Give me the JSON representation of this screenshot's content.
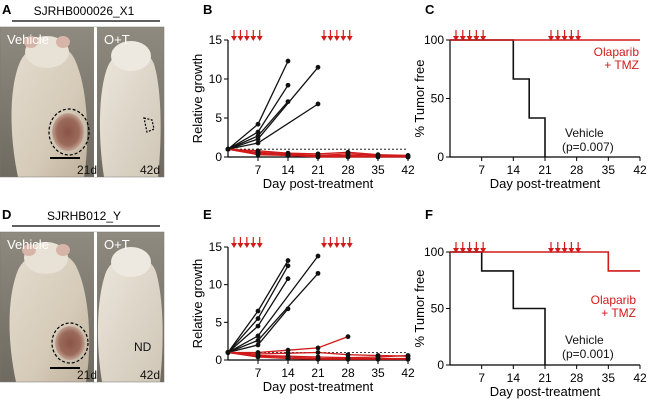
{
  "colors": {
    "vehicle": "#111111",
    "treatment": "#d11a1a",
    "dots": "#111111"
  },
  "dose_icon": "down-arrow-dose-icon",
  "panels": {
    "A": {
      "letter": "A",
      "model": "SJRHB000026_X1",
      "left_label": "Vehicle",
      "right_label": "O+T",
      "left_day": "21d",
      "right_day": "42d",
      "nd": ""
    },
    "D": {
      "letter": "D",
      "model": "SJRHB012_Y",
      "left_label": "Vehicle",
      "right_label": "O+T",
      "left_day": "21d",
      "right_day": "42d",
      "nd": "ND"
    },
    "B": {
      "letter": "B"
    },
    "C": {
      "letter": "C"
    },
    "E": {
      "letter": "E"
    },
    "F": {
      "letter": "F"
    }
  },
  "chart_data": [
    {
      "panel": "B",
      "type": "line",
      "title": "",
      "xlabel": "Day post-treatment",
      "ylabel": "Relative growth",
      "xlim": [
        0,
        42
      ],
      "ylim": [
        0,
        15
      ],
      "xticks": [
        7,
        14,
        21,
        28,
        35,
        42
      ],
      "yticks": [
        0,
        5,
        10,
        15
      ],
      "reference_line": 1,
      "dosing_days": [
        0,
        1.5,
        3,
        4.5,
        6,
        21,
        22.5,
        24,
        25.5,
        27
      ],
      "series": [
        {
          "name": "Vehicle",
          "group": "vehicle",
          "x": [
            0,
            7,
            14
          ],
          "y": [
            1,
            4.2,
            12.3
          ]
        },
        {
          "name": "Vehicle",
          "group": "vehicle",
          "x": [
            0,
            7,
            14
          ],
          "y": [
            1,
            3.2,
            9.2
          ]
        },
        {
          "name": "Vehicle",
          "group": "vehicle",
          "x": [
            0,
            7,
            14
          ],
          "y": [
            1,
            2.7,
            7.1
          ]
        },
        {
          "name": "Vehicle",
          "group": "vehicle",
          "x": [
            0,
            7,
            21
          ],
          "y": [
            1,
            2.3,
            11.5
          ]
        },
        {
          "name": "Vehicle",
          "group": "vehicle",
          "x": [
            0,
            7,
            21
          ],
          "y": [
            1,
            1.8,
            6.8
          ]
        },
        {
          "name": "Olaparib + TMZ",
          "group": "treatment",
          "x": [
            0,
            7,
            14,
            21,
            28,
            35,
            42
          ],
          "y": [
            1,
            0.8,
            0.5,
            0.4,
            0.6,
            0.3,
            0.2
          ]
        },
        {
          "name": "Olaparib + TMZ",
          "group": "treatment",
          "x": [
            0,
            7,
            14,
            21,
            28,
            35,
            42
          ],
          "y": [
            1,
            0.6,
            0.4,
            0.2,
            0.4,
            0.2,
            0.1
          ]
        },
        {
          "name": "Olaparib + TMZ",
          "group": "treatment",
          "x": [
            0,
            7,
            14,
            21,
            28,
            35,
            42
          ],
          "y": [
            1,
            0.5,
            0.3,
            0.1,
            0.2,
            0.1,
            0.1
          ]
        },
        {
          "name": "Olaparib + TMZ",
          "group": "treatment",
          "x": [
            0,
            7,
            14,
            21,
            28,
            35,
            42
          ],
          "y": [
            1,
            0.4,
            0.2,
            0.1,
            0.1,
            0.1,
            0.0
          ]
        },
        {
          "name": "Olaparib + TMZ",
          "group": "treatment",
          "x": [
            0,
            7,
            14,
            21,
            28,
            35,
            42
          ],
          "y": [
            1,
            0.3,
            0.2,
            0.0,
            0.0,
            0.0,
            0.0
          ]
        }
      ]
    },
    {
      "panel": "C",
      "type": "line",
      "step": true,
      "title": "",
      "xlabel": "Day post-treatment",
      "ylabel": "% Tumor free",
      "xlim": [
        0,
        42
      ],
      "ylim": [
        0,
        100
      ],
      "xticks": [
        7,
        14,
        21,
        28,
        35,
        42
      ],
      "yticks": [
        0,
        50,
        100
      ],
      "dosing_days": [
        0,
        1.5,
        3,
        4.5,
        6,
        21,
        22.5,
        24,
        25.5,
        27
      ],
      "series": [
        {
          "name": "Vehicle",
          "group": "vehicle",
          "x": [
            0,
            14,
            14,
            17.5,
            17.5,
            21,
            21
          ],
          "y": [
            100,
            100,
            66.7,
            66.7,
            33.3,
            33.3,
            0
          ]
        },
        {
          "name": "Olaparib + TMZ",
          "group": "treatment",
          "x": [
            0,
            42
          ],
          "y": [
            100,
            100
          ]
        }
      ],
      "annotations": [
        {
          "text": "Olaparib",
          "group": "treatment"
        },
        {
          "text": "+ TMZ",
          "group": "treatment"
        },
        {
          "text": "Vehicle",
          "group": "vehicle"
        },
        {
          "text": "(p=0.007)",
          "group": "vehicle"
        }
      ]
    },
    {
      "panel": "E",
      "type": "line",
      "title": "",
      "xlabel": "Day post-treatment",
      "ylabel": "Relative growth",
      "xlim": [
        0,
        42
      ],
      "ylim": [
        0,
        15
      ],
      "xticks": [
        7,
        14,
        21,
        28,
        35,
        42
      ],
      "yticks": [
        0,
        5,
        10,
        15
      ],
      "reference_line": 1,
      "dosing_days": [
        0,
        1.5,
        3,
        4.5,
        6,
        21,
        22.5,
        24,
        25.5,
        27
      ],
      "series": [
        {
          "name": "Vehicle",
          "group": "vehicle",
          "x": [
            0,
            7,
            14
          ],
          "y": [
            1,
            6.5,
            13.2
          ]
        },
        {
          "name": "Vehicle",
          "group": "vehicle",
          "x": [
            0,
            7,
            14
          ],
          "y": [
            1,
            5.5,
            12.5
          ]
        },
        {
          "name": "Vehicle",
          "group": "vehicle",
          "x": [
            0,
            7,
            14
          ],
          "y": [
            1,
            4.5,
            10.8
          ]
        },
        {
          "name": "Vehicle",
          "group": "vehicle",
          "x": [
            0,
            7,
            21
          ],
          "y": [
            1,
            3.2,
            13.8
          ]
        },
        {
          "name": "Vehicle",
          "group": "vehicle",
          "x": [
            0,
            7,
            21
          ],
          "y": [
            1,
            2.6,
            11.5
          ]
        },
        {
          "name": "Vehicle",
          "group": "vehicle",
          "x": [
            0,
            7,
            14
          ],
          "y": [
            1,
            2.0,
            6.8
          ]
        },
        {
          "name": "Olaparib + TMZ",
          "group": "treatment",
          "x": [
            0,
            7,
            14,
            21,
            28
          ],
          "y": [
            1,
            1.0,
            1.3,
            1.6,
            3.1
          ]
        },
        {
          "name": "Olaparib + TMZ",
          "group": "treatment",
          "x": [
            0,
            7,
            14,
            21,
            28,
            35,
            42
          ],
          "y": [
            1,
            0.8,
            0.9,
            1.0,
            0.7,
            0.6,
            0.5
          ]
        },
        {
          "name": "Olaparib + TMZ",
          "group": "treatment",
          "x": [
            0,
            7,
            14,
            21,
            28,
            35,
            42
          ],
          "y": [
            1,
            0.6,
            0.5,
            0.4,
            0.3,
            0.4,
            0.6
          ]
        },
        {
          "name": "Olaparib + TMZ",
          "group": "treatment",
          "x": [
            0,
            7,
            14,
            21,
            28,
            35,
            42
          ],
          "y": [
            1,
            0.5,
            0.4,
            0.2,
            0.2,
            0.2,
            0.2
          ]
        },
        {
          "name": "Olaparib + TMZ",
          "group": "treatment",
          "x": [
            0,
            7,
            14,
            21,
            28,
            35,
            42
          ],
          "y": [
            1,
            0.4,
            0.2,
            0.1,
            0.1,
            0.1,
            0.1
          ]
        }
      ]
    },
    {
      "panel": "F",
      "type": "line",
      "step": true,
      "title": "",
      "xlabel": "Day post-treatment",
      "ylabel": "% Tumor free",
      "xlim": [
        0,
        42
      ],
      "ylim": [
        0,
        100
      ],
      "xticks": [
        7,
        14,
        21,
        28,
        35,
        42
      ],
      "yticks": [
        0,
        50,
        100
      ],
      "dosing_days": [
        0,
        1.5,
        3,
        4.5,
        6,
        21,
        22.5,
        24,
        25.5,
        27
      ],
      "series": [
        {
          "name": "Vehicle",
          "group": "vehicle",
          "x": [
            0,
            7,
            7,
            14,
            14,
            21,
            21
          ],
          "y": [
            100,
            100,
            83.3,
            83.3,
            50,
            50,
            0
          ]
        },
        {
          "name": "Olaparib + TMZ",
          "group": "treatment",
          "x": [
            0,
            35,
            35,
            42
          ],
          "y": [
            100,
            100,
            83.3,
            83.3
          ]
        }
      ],
      "annotations": [
        {
          "text": "Olaparib",
          "group": "treatment"
        },
        {
          "text": "+ TMZ",
          "group": "treatment"
        },
        {
          "text": "Vehicle",
          "group": "vehicle"
        },
        {
          "text": "(p=0.001)",
          "group": "vehicle"
        }
      ]
    }
  ]
}
